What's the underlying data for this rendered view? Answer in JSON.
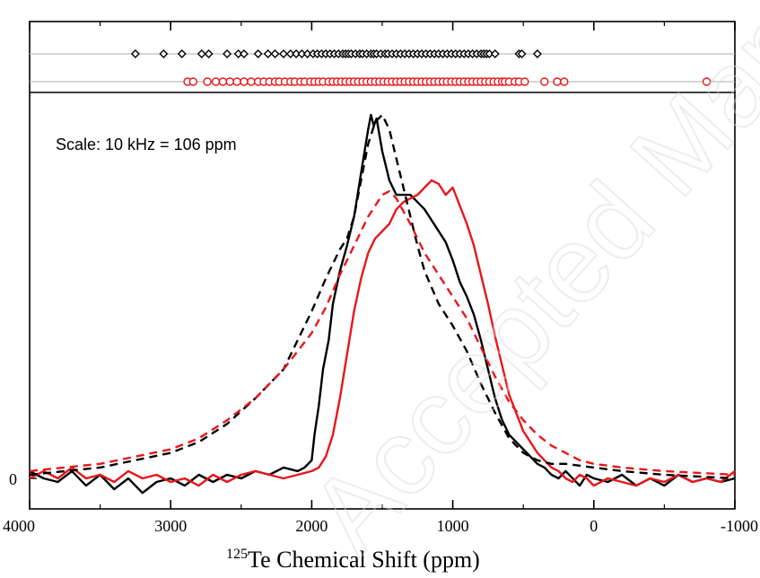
{
  "chart_data": {
    "type": "line",
    "xlabel": "Te Chemical Shift (ppm)",
    "xlabel_superscript": "125",
    "xlim": [
      4000,
      -1000
    ],
    "x_reversed": true,
    "xticks": [
      4000,
      3000,
      2000,
      1000,
      0,
      -1000
    ],
    "xtick_labels": [
      "4000",
      "3000",
      "2000",
      "1000",
      "0",
      "-1000"
    ],
    "yticks": [
      0
    ],
    "ytick_labels": [
      "0"
    ],
    "ylim": [
      -0.06,
      1.06
    ],
    "annotation": "Scale: 10 kHz = 106 ppm",
    "series": [
      {
        "color": "#000000",
        "style": "solid",
        "points": [
          [
            4000,
            0.02
          ],
          [
            3900,
            0.0
          ],
          [
            3800,
            -0.01
          ],
          [
            3700,
            0.02
          ],
          [
            3600,
            -0.02
          ],
          [
            3500,
            0.01
          ],
          [
            3400,
            -0.03
          ],
          [
            3300,
            0.0
          ],
          [
            3200,
            -0.04
          ],
          [
            3100,
            -0.01
          ],
          [
            3000,
            0.0
          ],
          [
            2900,
            -0.02
          ],
          [
            2800,
            0.01
          ],
          [
            2700,
            -0.01
          ],
          [
            2600,
            0.01
          ],
          [
            2500,
            0.0
          ],
          [
            2400,
            0.02
          ],
          [
            2300,
            0.01
          ],
          [
            2200,
            0.03
          ],
          [
            2100,
            0.02
          ],
          [
            2050,
            0.03
          ],
          [
            2000,
            0.05
          ],
          [
            1980,
            0.12
          ],
          [
            1950,
            0.2
          ],
          [
            1920,
            0.3
          ],
          [
            1880,
            0.38
          ],
          [
            1850,
            0.48
          ],
          [
            1800,
            0.57
          ],
          [
            1750,
            0.64
          ],
          [
            1700,
            0.72
          ],
          [
            1650,
            0.84
          ],
          [
            1600,
            0.96
          ],
          [
            1580,
            1.0
          ],
          [
            1560,
            0.97
          ],
          [
            1540,
            0.99
          ],
          [
            1500,
            0.9
          ],
          [
            1450,
            0.82
          ],
          [
            1400,
            0.78
          ],
          [
            1350,
            0.78
          ],
          [
            1300,
            0.78
          ],
          [
            1250,
            0.76
          ],
          [
            1200,
            0.74
          ],
          [
            1150,
            0.71
          ],
          [
            1100,
            0.68
          ],
          [
            1050,
            0.65
          ],
          [
            1000,
            0.6
          ],
          [
            950,
            0.54
          ],
          [
            900,
            0.5
          ],
          [
            850,
            0.45
          ],
          [
            800,
            0.38
          ],
          [
            750,
            0.3
          ],
          [
            700,
            0.22
          ],
          [
            650,
            0.16
          ],
          [
            600,
            0.12
          ],
          [
            550,
            0.1
          ],
          [
            500,
            0.08
          ],
          [
            450,
            0.06
          ],
          [
            400,
            0.04
          ],
          [
            350,
            0.03
          ],
          [
            300,
            0.01
          ],
          [
            250,
            0.0
          ],
          [
            200,
            0.02
          ],
          [
            150,
            0.0
          ],
          [
            100,
            -0.02
          ],
          [
            50,
            0.01
          ],
          [
            0,
            0.0
          ],
          [
            -100,
            -0.01
          ],
          [
            -200,
            0.01
          ],
          [
            -300,
            -0.02
          ],
          [
            -400,
            0.0
          ],
          [
            -500,
            -0.02
          ],
          [
            -600,
            0.01
          ],
          [
            -700,
            -0.01
          ],
          [
            -800,
            0.0
          ],
          [
            -900,
            -0.01
          ],
          [
            -1000,
            0.0
          ]
        ]
      },
      {
        "color": "#e8161b",
        "style": "solid",
        "points": [
          [
            4000,
            0.0
          ],
          [
            3900,
            0.02
          ],
          [
            3800,
            0.0
          ],
          [
            3700,
            0.03
          ],
          [
            3600,
            0.0
          ],
          [
            3500,
            0.01
          ],
          [
            3400,
            -0.01
          ],
          [
            3300,
            0.02
          ],
          [
            3200,
            0.0
          ],
          [
            3100,
            0.01
          ],
          [
            3000,
            -0.01
          ],
          [
            2900,
            0.0
          ],
          [
            2800,
            -0.02
          ],
          [
            2700,
            0.01
          ],
          [
            2600,
            -0.01
          ],
          [
            2500,
            0.01
          ],
          [
            2400,
            0.02
          ],
          [
            2300,
            0.01
          ],
          [
            2200,
            0.0
          ],
          [
            2100,
            0.01
          ],
          [
            2000,
            0.02
          ],
          [
            1950,
            0.03
          ],
          [
            1900,
            0.06
          ],
          [
            1850,
            0.12
          ],
          [
            1800,
            0.22
          ],
          [
            1750,
            0.34
          ],
          [
            1700,
            0.46
          ],
          [
            1650,
            0.55
          ],
          [
            1600,
            0.62
          ],
          [
            1550,
            0.66
          ],
          [
            1500,
            0.68
          ],
          [
            1450,
            0.7
          ],
          [
            1400,
            0.74
          ],
          [
            1350,
            0.76
          ],
          [
            1300,
            0.77
          ],
          [
            1250,
            0.78
          ],
          [
            1200,
            0.8
          ],
          [
            1150,
            0.82
          ],
          [
            1100,
            0.81
          ],
          [
            1050,
            0.78
          ],
          [
            1000,
            0.8
          ],
          [
            950,
            0.75
          ],
          [
            900,
            0.7
          ],
          [
            850,
            0.64
          ],
          [
            800,
            0.56
          ],
          [
            750,
            0.48
          ],
          [
            700,
            0.39
          ],
          [
            650,
            0.31
          ],
          [
            600,
            0.23
          ],
          [
            550,
            0.18
          ],
          [
            500,
            0.13
          ],
          [
            450,
            0.1
          ],
          [
            400,
            0.07
          ],
          [
            350,
            0.05
          ],
          [
            300,
            0.03
          ],
          [
            250,
            0.02
          ],
          [
            200,
            0.0
          ],
          [
            150,
            -0.01
          ],
          [
            100,
            0.01
          ],
          [
            50,
            0.0
          ],
          [
            0,
            -0.02
          ],
          [
            -100,
            0.0
          ],
          [
            -200,
            -0.01
          ],
          [
            -300,
            -0.02
          ],
          [
            -400,
            0.0
          ],
          [
            -500,
            -0.01
          ],
          [
            -600,
            0.01
          ],
          [
            -700,
            -0.01
          ],
          [
            -800,
            0.0
          ],
          [
            -900,
            -0.01
          ],
          [
            -1000,
            0.02
          ]
        ]
      },
      {
        "color": "#000000",
        "style": "dashed",
        "points": [
          [
            4000,
            0.01
          ],
          [
            3500,
            0.03
          ],
          [
            3000,
            0.07
          ],
          [
            2800,
            0.1
          ],
          [
            2600,
            0.15
          ],
          [
            2400,
            0.22
          ],
          [
            2200,
            0.3
          ],
          [
            2100,
            0.38
          ],
          [
            2000,
            0.46
          ],
          [
            1900,
            0.55
          ],
          [
            1800,
            0.63
          ],
          [
            1750,
            0.66
          ],
          [
            1700,
            0.72
          ],
          [
            1650,
            0.82
          ],
          [
            1600,
            0.92
          ],
          [
            1550,
            0.98
          ],
          [
            1500,
            1.0
          ],
          [
            1450,
            0.96
          ],
          [
            1400,
            0.88
          ],
          [
            1350,
            0.8
          ],
          [
            1300,
            0.72
          ],
          [
            1250,
            0.64
          ],
          [
            1200,
            0.57
          ],
          [
            1100,
            0.48
          ],
          [
            1000,
            0.42
          ],
          [
            900,
            0.35
          ],
          [
            800,
            0.26
          ],
          [
            700,
            0.18
          ],
          [
            600,
            0.11
          ],
          [
            500,
            0.07
          ],
          [
            400,
            0.05
          ],
          [
            300,
            0.04
          ],
          [
            200,
            0.04
          ],
          [
            0,
            0.03
          ],
          [
            -200,
            0.02
          ],
          [
            -500,
            0.01
          ],
          [
            -1000,
            0.0
          ]
        ]
      },
      {
        "color": "#e8161b",
        "style": "dashed",
        "points": [
          [
            4000,
            0.02
          ],
          [
            3500,
            0.04
          ],
          [
            3000,
            0.08
          ],
          [
            2800,
            0.11
          ],
          [
            2600,
            0.16
          ],
          [
            2400,
            0.22
          ],
          [
            2200,
            0.3
          ],
          [
            2000,
            0.4
          ],
          [
            1900,
            0.47
          ],
          [
            1800,
            0.56
          ],
          [
            1700,
            0.64
          ],
          [
            1600,
            0.72
          ],
          [
            1500,
            0.78
          ],
          [
            1450,
            0.79
          ],
          [
            1400,
            0.77
          ],
          [
            1300,
            0.7
          ],
          [
            1200,
            0.62
          ],
          [
            1100,
            0.56
          ],
          [
            1000,
            0.5
          ],
          [
            900,
            0.44
          ],
          [
            800,
            0.36
          ],
          [
            700,
            0.28
          ],
          [
            600,
            0.21
          ],
          [
            500,
            0.16
          ],
          [
            400,
            0.12
          ],
          [
            300,
            0.09
          ],
          [
            200,
            0.07
          ],
          [
            100,
            0.05
          ],
          [
            0,
            0.04
          ],
          [
            -200,
            0.03
          ],
          [
            -500,
            0.02
          ],
          [
            -1000,
            0.01
          ]
        ]
      }
    ],
    "marker_rows": [
      {
        "marker": "diamond",
        "color": "#000000",
        "x": [
          3250,
          3050,
          2920,
          2780,
          2730,
          2600,
          2520,
          2480,
          2380,
          2310,
          2260,
          2200,
          2150,
          2110,
          2070,
          2030,
          1990,
          1960,
          1930,
          1900,
          1870,
          1840,
          1810,
          1780,
          1760,
          1740,
          1720,
          1690,
          1660,
          1640,
          1610,
          1580,
          1560,
          1540,
          1510,
          1480,
          1460,
          1430,
          1400,
          1370,
          1340,
          1310,
          1280,
          1250,
          1220,
          1190,
          1160,
          1130,
          1100,
          1070,
          1040,
          1010,
          980,
          950,
          920,
          890,
          860,
          830,
          800,
          780,
          760,
          740,
          700,
          530,
          510,
          400
        ]
      },
      {
        "marker": "circle",
        "color": "#e8161b",
        "x": [
          2880,
          2840,
          2740,
          2680,
          2630,
          2580,
          2530,
          2480,
          2430,
          2380,
          2340,
          2300,
          2260,
          2230,
          2190,
          2150,
          2120,
          2080,
          2050,
          2010,
          1980,
          1950,
          1920,
          1880,
          1850,
          1820,
          1790,
          1760,
          1730,
          1700,
          1670,
          1640,
          1610,
          1580,
          1550,
          1520,
          1490,
          1460,
          1430,
          1400,
          1370,
          1340,
          1310,
          1280,
          1250,
          1220,
          1190,
          1160,
          1130,
          1100,
          1070,
          1040,
          1010,
          980,
          950,
          920,
          890,
          860,
          830,
          800,
          770,
          740,
          710,
          680,
          650,
          630,
          600,
          560,
          530,
          490,
          350,
          260,
          210,
          -800
        ]
      }
    ]
  }
}
